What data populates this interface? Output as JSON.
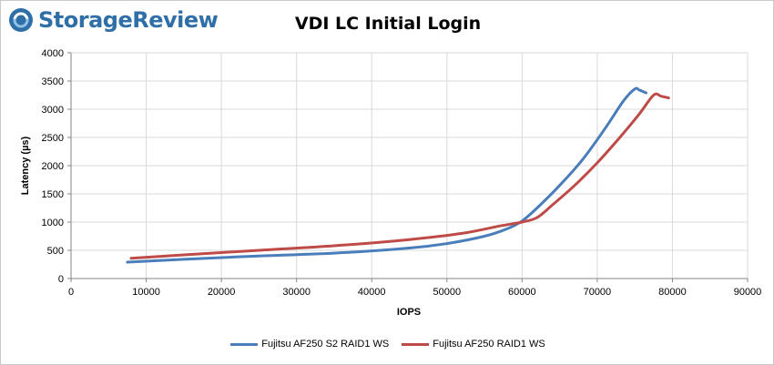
{
  "brand": {
    "name": "StorageReview",
    "logo_icon": "storage-review-swirl-icon",
    "color": "#2f6fa8"
  },
  "chart_data": {
    "type": "line",
    "title": "VDI LC Initial Login",
    "xlabel": "IOPS",
    "ylabel": "Latency (µs)",
    "xlim": [
      0,
      90000
    ],
    "ylim": [
      0,
      4000
    ],
    "xticks": [
      0,
      10000,
      20000,
      30000,
      40000,
      50000,
      60000,
      70000,
      80000,
      90000
    ],
    "yticks": [
      0,
      500,
      1000,
      1500,
      2000,
      2500,
      3000,
      3500,
      4000
    ],
    "grid": true,
    "legend_position": "bottom",
    "series": [
      {
        "name": "Fujitsu AF250 S2 RAID1 WS",
        "color": "#4a7ebb",
        "x": [
          7500,
          15000,
          25000,
          35000,
          45000,
          50000,
          55000,
          58000,
          60000,
          62000,
          65000,
          68000,
          71000,
          73500,
          75000,
          75600,
          76500
        ],
        "y": [
          290,
          340,
          400,
          450,
          540,
          620,
          750,
          880,
          1020,
          1250,
          1650,
          2100,
          2650,
          3150,
          3360,
          3340,
          3290
        ]
      },
      {
        "name": "Fujitsu AF250 RAID1 WS",
        "color": "#be4b48",
        "x": [
          8000,
          15000,
          25000,
          35000,
          45000,
          52000,
          57000,
          60000,
          62000,
          64000,
          67000,
          70000,
          73000,
          75500,
          77500,
          78500,
          79500
        ],
        "y": [
          360,
          420,
          500,
          580,
          690,
          800,
          930,
          1000,
          1080,
          1300,
          1650,
          2050,
          2500,
          2900,
          3250,
          3230,
          3200
        ]
      }
    ]
  }
}
